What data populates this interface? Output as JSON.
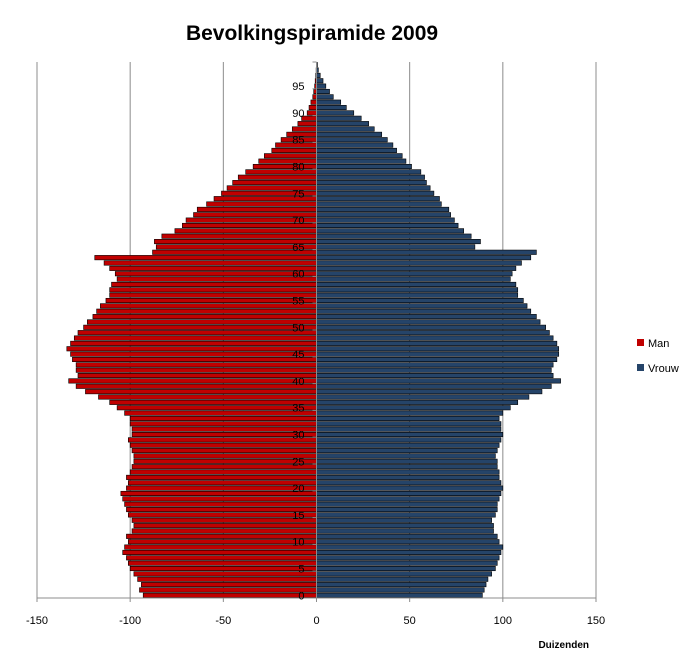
{
  "chart_data": {
    "type": "bar",
    "orientation": "horizontal-pyramid",
    "title": "Bevolkingspiramide 2009",
    "unit_label": "Duizenden",
    "xlim": [
      -150,
      150
    ],
    "x_ticks": [
      -150,
      -100,
      -50,
      0,
      50,
      100,
      150
    ],
    "x_tick_labels": [
      "-150",
      "-100",
      "-50",
      "0",
      "50",
      "100",
      "150"
    ],
    "ylim": [
      0,
      99
    ],
    "y_ticks": [
      0,
      5,
      10,
      15,
      20,
      25,
      30,
      35,
      40,
      45,
      50,
      55,
      60,
      65,
      70,
      75,
      80,
      85,
      90,
      95
    ],
    "y_tick_labels": [
      "0",
      "5",
      "10",
      "15",
      "20",
      "25",
      "30",
      "35",
      "40",
      "45",
      "50",
      "55",
      "60",
      "65",
      "70",
      "75",
      "80",
      "85",
      "90",
      "95"
    ],
    "grid": "vertical",
    "legend_position": "right",
    "colors": {
      "man": "#c00000",
      "vrouw": "#254469"
    },
    "ages": [
      0,
      1,
      2,
      3,
      4,
      5,
      6,
      7,
      8,
      9,
      10,
      11,
      12,
      13,
      14,
      15,
      16,
      17,
      18,
      19,
      20,
      21,
      22,
      23,
      24,
      25,
      26,
      27,
      28,
      29,
      30,
      31,
      32,
      33,
      34,
      35,
      36,
      37,
      38,
      39,
      40,
      41,
      42,
      43,
      44,
      45,
      46,
      47,
      48,
      49,
      50,
      51,
      52,
      53,
      54,
      55,
      56,
      57,
      58,
      59,
      60,
      61,
      62,
      63,
      64,
      65,
      66,
      67,
      68,
      69,
      70,
      71,
      72,
      73,
      74,
      75,
      76,
      77,
      78,
      79,
      80,
      81,
      82,
      83,
      84,
      85,
      86,
      87,
      88,
      89,
      90,
      91,
      92,
      93,
      94,
      95,
      96,
      97,
      98,
      99
    ],
    "series": [
      {
        "name": "Man",
        "values": [
          -93,
          -95,
          -94,
          -96,
          -98,
          -100,
          -101,
          -102,
          -104,
          -103,
          -101,
          -102,
          -99,
          -98,
          -99,
          -101,
          -102,
          -103,
          -104,
          -105,
          -102,
          -101,
          -102,
          -100,
          -99,
          -98,
          -98,
          -99,
          -100,
          -101,
          -99,
          -99,
          -100,
          -100,
          -103,
          -107,
          -111,
          -117,
          -124,
          -129,
          -133,
          -128,
          -129,
          -129,
          -131,
          -132,
          -134,
          -132,
          -130,
          -128,
          -125,
          -123,
          -120,
          -118,
          -116,
          -113,
          -111,
          -111,
          -110,
          -107,
          -108,
          -111,
          -114,
          -119,
          -88,
          -86,
          -87,
          -83,
          -76,
          -72,
          -70,
          -66,
          -64,
          -59,
          -55,
          -51,
          -48,
          -45,
          -42,
          -38,
          -34,
          -31,
          -28,
          -24,
          -22,
          -19,
          -16,
          -13,
          -10,
          -8,
          -5,
          -4,
          -3,
          -2,
          -1.5,
          -1,
          -0.7,
          -0.4,
          -0.2,
          -0.1
        ]
      },
      {
        "name": "Vrouw",
        "values": [
          89,
          90,
          91,
          92,
          94,
          96,
          97,
          98,
          99,
          100,
          98,
          97,
          95,
          95,
          94,
          96,
          97,
          97,
          98,
          99,
          100,
          99,
          98,
          98,
          97,
          97,
          96,
          97,
          98,
          99,
          100,
          99,
          99,
          98,
          100,
          104,
          108,
          114,
          121,
          126,
          131,
          127,
          126,
          127,
          129,
          130,
          130,
          129,
          127,
          125,
          123,
          120,
          118,
          115,
          113,
          111,
          108,
          108,
          107,
          104,
          105,
          107,
          110,
          115,
          118,
          85,
          88,
          83,
          79,
          76,
          74,
          72,
          71,
          67,
          66,
          63,
          61,
          59,
          58,
          56,
          51,
          48,
          46,
          43,
          41,
          38,
          35,
          31,
          28,
          24,
          20,
          16,
          13,
          9,
          7,
          5,
          3.5,
          2,
          1,
          0.5
        ]
      }
    ]
  }
}
